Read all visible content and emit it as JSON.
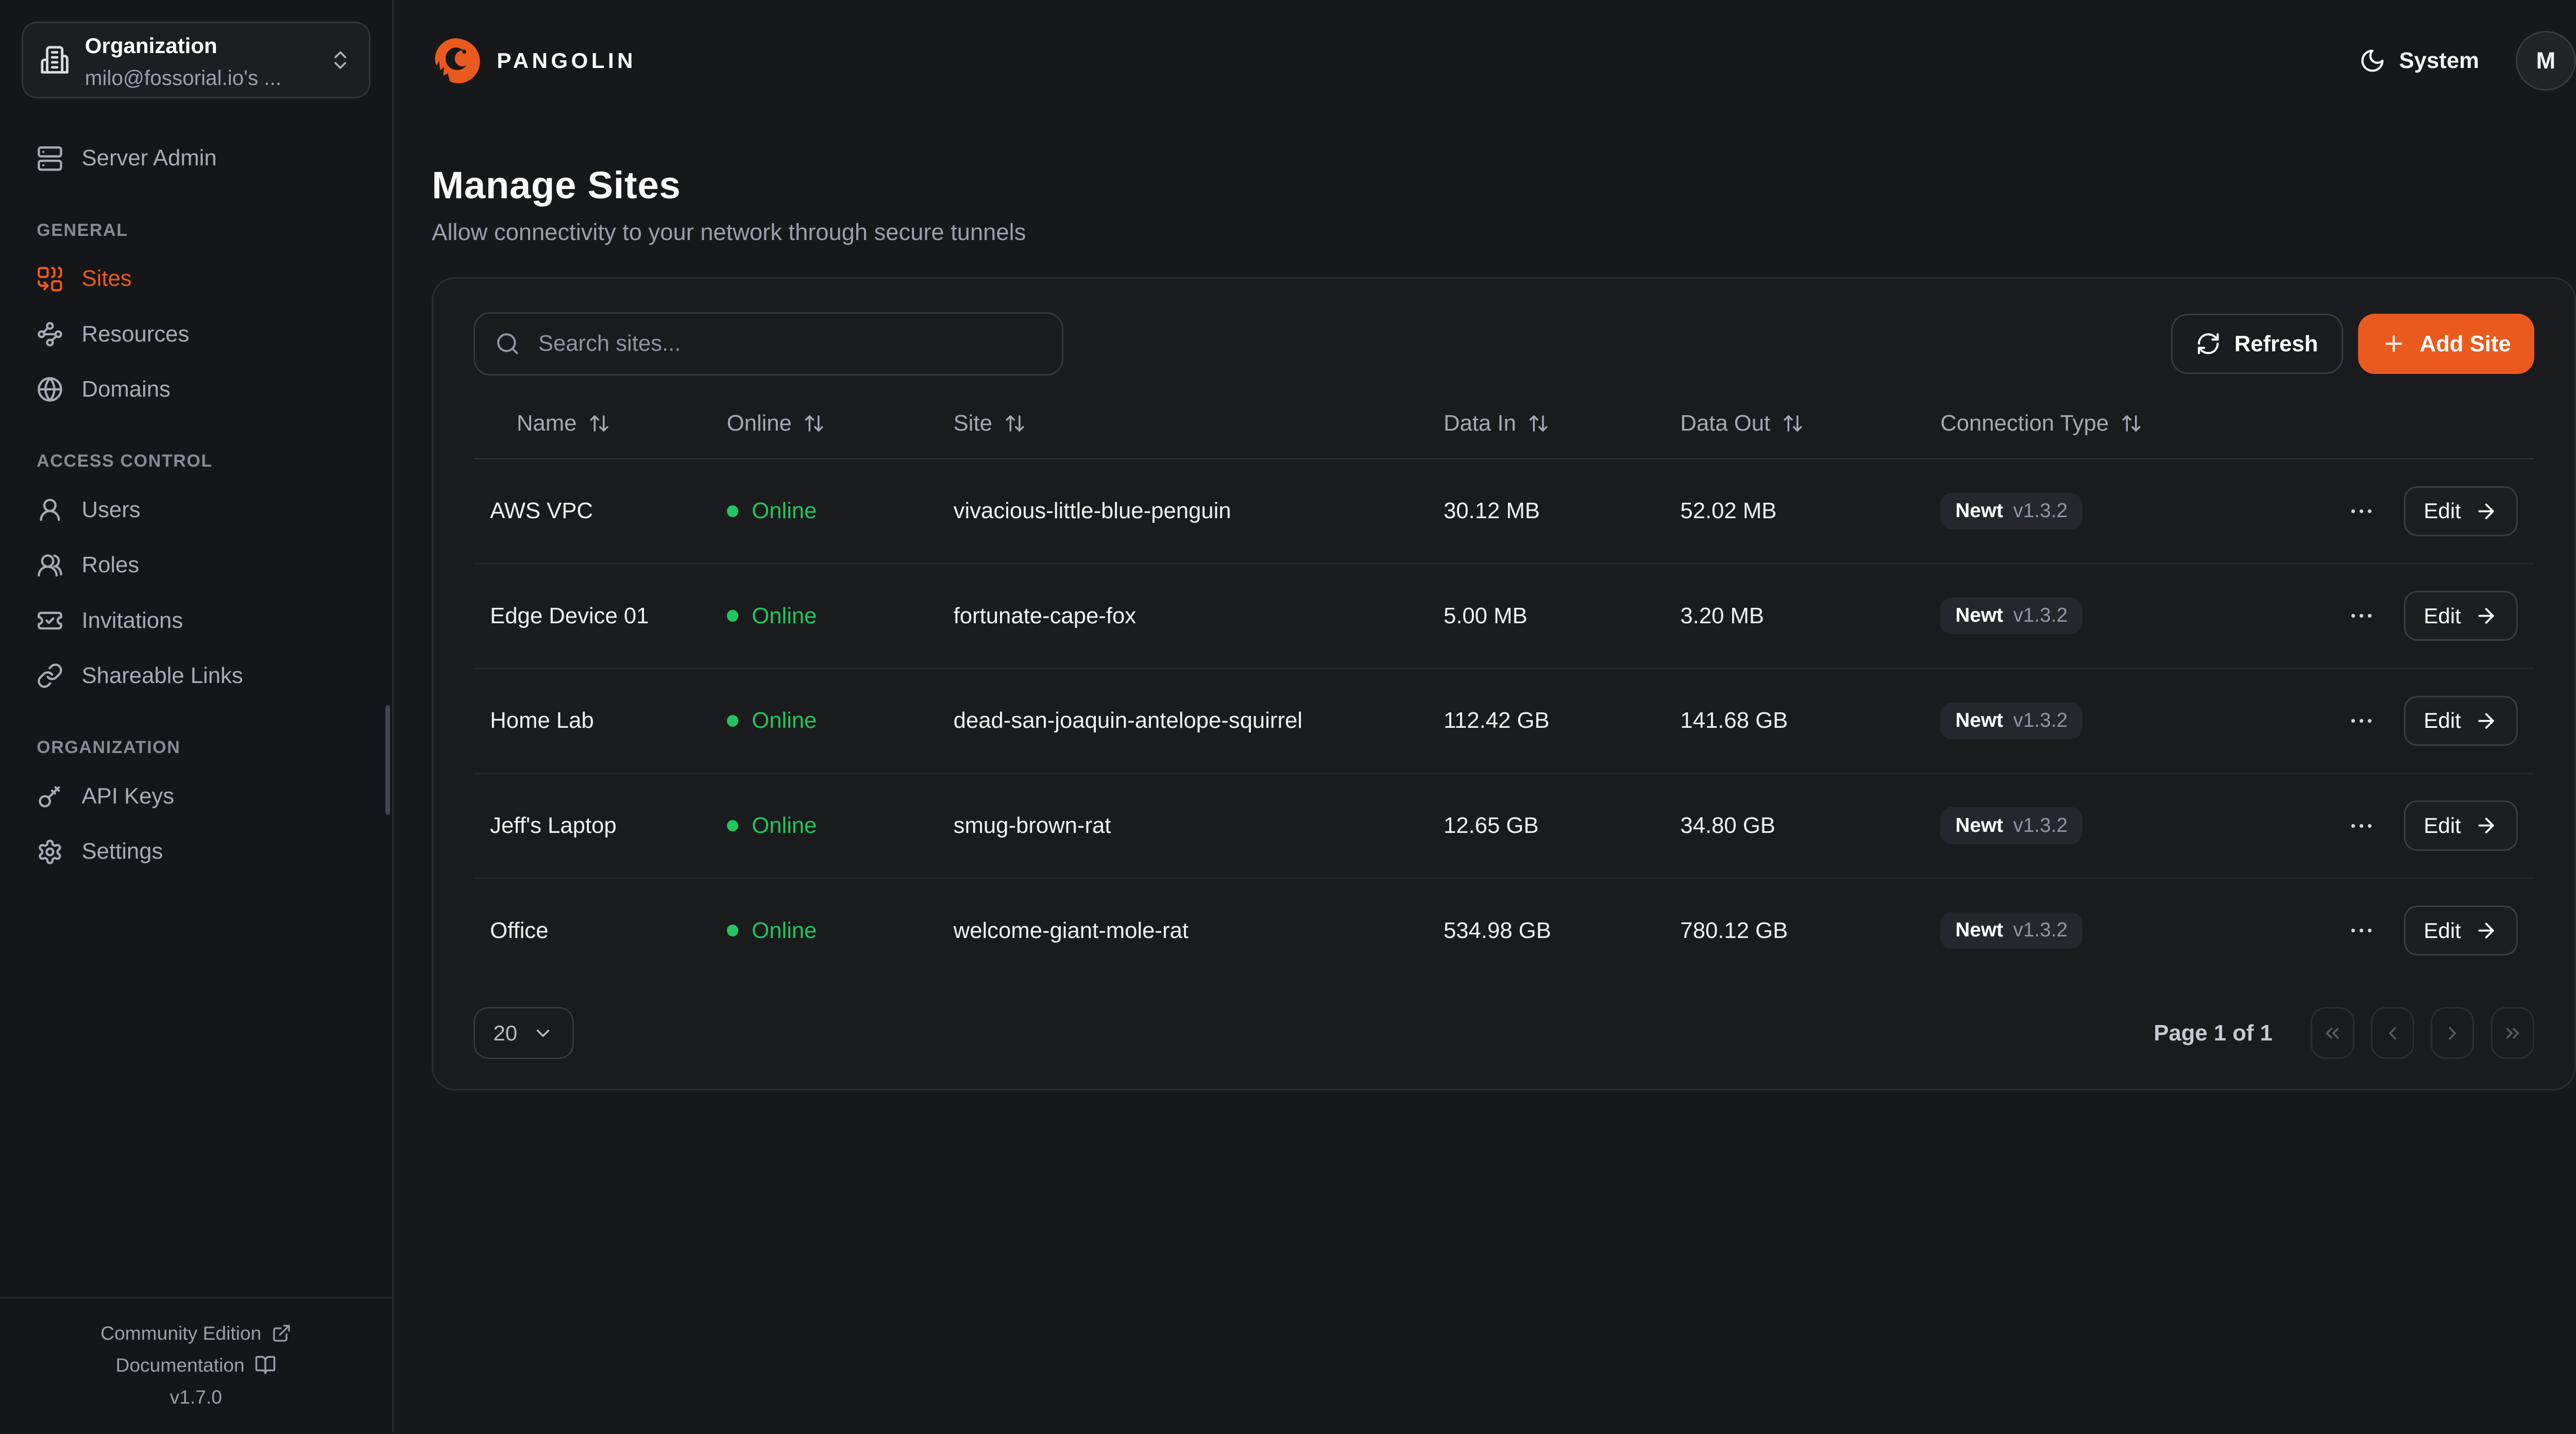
{
  "colors": {
    "accent": "#ea5a1e",
    "online": "#22c55e"
  },
  "brand": {
    "name": "PANGOLIN"
  },
  "topbar": {
    "theme_label": "System",
    "avatar_initial": "M"
  },
  "sidebar": {
    "org_switcher": {
      "title": "Organization",
      "subtitle": "milo@fossorial.io's ..."
    },
    "primary_item": {
      "label": "Server Admin",
      "icon": "server"
    },
    "sections": [
      {
        "heading": "GENERAL",
        "items": [
          {
            "label": "Sites",
            "icon": "combine",
            "active": true
          },
          {
            "label": "Resources",
            "icon": "waypoints",
            "active": false
          },
          {
            "label": "Domains",
            "icon": "globe",
            "active": false
          }
        ]
      },
      {
        "heading": "ACCESS CONTROL",
        "items": [
          {
            "label": "Users",
            "icon": "user",
            "active": false
          },
          {
            "label": "Roles",
            "icon": "users",
            "active": false
          },
          {
            "label": "Invitations",
            "icon": "ticket-check",
            "active": false
          },
          {
            "label": "Shareable Links",
            "icon": "link",
            "active": false
          }
        ]
      },
      {
        "heading": "ORGANIZATION",
        "items": [
          {
            "label": "API Keys",
            "icon": "key",
            "active": false
          },
          {
            "label": "Settings",
            "icon": "settings",
            "active": false
          }
        ]
      }
    ],
    "footer": {
      "community_label": "Community Edition",
      "documentation_label": "Documentation",
      "version": "v1.7.0"
    }
  },
  "page": {
    "title": "Manage Sites",
    "subtitle": "Allow connectivity to your network through secure tunnels"
  },
  "toolbar": {
    "search_placeholder": "Search sites...",
    "refresh_label": "Refresh",
    "add_site_label": "Add Site"
  },
  "table": {
    "columns": [
      "Name",
      "Online",
      "Site",
      "Data In",
      "Data Out",
      "Connection Type"
    ],
    "edit_label": "Edit",
    "rows": [
      {
        "name": "AWS VPC",
        "status": "Online",
        "site": "vivacious-little-blue-penguin",
        "data_in": "30.12 MB",
        "data_out": "52.02 MB",
        "connection": {
          "name": "Newt",
          "version": "v1.3.2"
        }
      },
      {
        "name": "Edge Device 01",
        "status": "Online",
        "site": "fortunate-cape-fox",
        "data_in": "5.00 MB",
        "data_out": "3.20 MB",
        "connection": {
          "name": "Newt",
          "version": "v1.3.2"
        }
      },
      {
        "name": "Home Lab",
        "status": "Online",
        "site": "dead-san-joaquin-antelope-squirrel",
        "data_in": "112.42 GB",
        "data_out": "141.68 GB",
        "connection": {
          "name": "Newt",
          "version": "v1.3.2"
        }
      },
      {
        "name": "Jeff's Laptop",
        "status": "Online",
        "site": "smug-brown-rat",
        "data_in": "12.65 GB",
        "data_out": "34.80 GB",
        "connection": {
          "name": "Newt",
          "version": "v1.3.2"
        }
      },
      {
        "name": "Office",
        "status": "Online",
        "site": "welcome-giant-mole-rat",
        "data_in": "534.98 GB",
        "data_out": "780.12 GB",
        "connection": {
          "name": "Newt",
          "version": "v1.3.2"
        }
      }
    ]
  },
  "pagination": {
    "page_size": "20",
    "status": "Page 1 of 1"
  }
}
